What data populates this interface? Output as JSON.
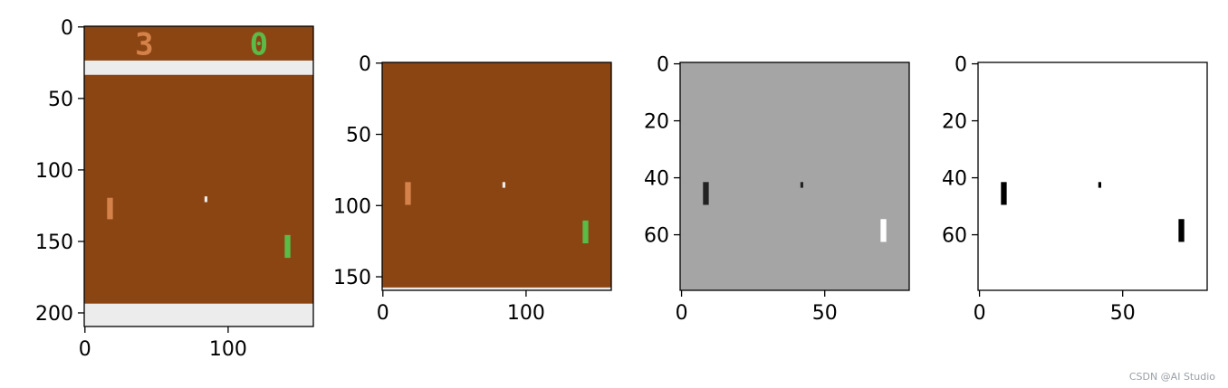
{
  "colors": {
    "field_brown": "#8b4513",
    "wall_white": "#ececec",
    "paddle_orange": "#d5824a",
    "paddle_green": "#5cba47",
    "ball_white": "#ececec",
    "gray_bg": "#a5a5a5",
    "gray_dark_paddle": "#222222",
    "gray_light_paddle": "#ffffff",
    "binary_bg": "#ffffff",
    "binary_fg": "#000000"
  },
  "panels": [
    {
      "id": "raw-frame",
      "description_type": "image",
      "image_size": [
        160,
        210
      ],
      "x_ticks": [
        0,
        100
      ],
      "y_ticks": [
        0,
        50,
        100,
        150,
        200
      ],
      "score_left": "3",
      "score_right": "0"
    },
    {
      "id": "cropped-frame",
      "description_type": "image",
      "image_size": [
        160,
        160
      ],
      "x_ticks": [
        0,
        100
      ],
      "y_ticks": [
        0,
        50,
        100,
        150
      ]
    },
    {
      "id": "grayscale-frame",
      "description_type": "image",
      "image_size": [
        80,
        80
      ],
      "x_ticks": [
        0,
        50
      ],
      "y_ticks": [
        0,
        20,
        40,
        60
      ]
    },
    {
      "id": "binary-frame",
      "description_type": "image",
      "image_size": [
        80,
        80
      ],
      "x_ticks": [
        0,
        50
      ],
      "y_ticks": [
        0,
        20,
        40,
        60
      ]
    }
  ],
  "watermark": "CSDN @AI Studio"
}
